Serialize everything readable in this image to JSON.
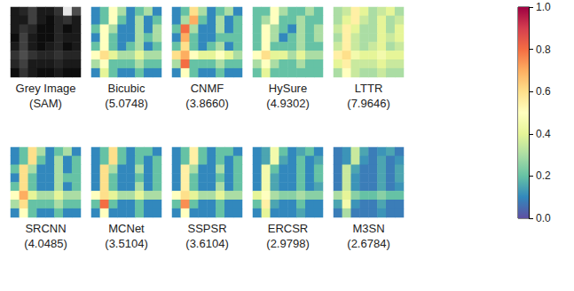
{
  "chart_data": {
    "type": "heatmap",
    "grey_image": {
      "caption": "Grey Image",
      "subcaption": "(SAM)",
      "range": [
        0,
        1
      ],
      "cells": [
        [
          0.1,
          0.15,
          0.25,
          0.1,
          0.1,
          0.2,
          0.9,
          0.3
        ],
        [
          0.1,
          0.1,
          0.25,
          0.1,
          0.05,
          0.15,
          0.2,
          0.1
        ],
        [
          0.1,
          0.2,
          0.15,
          0.05,
          0.05,
          0.15,
          0.05,
          0.1
        ],
        [
          0.05,
          0.25,
          0.1,
          0.05,
          0.05,
          0.15,
          0.1,
          0.1
        ],
        [
          0.1,
          0.25,
          0.1,
          0.05,
          0.1,
          0.15,
          0.05,
          0.1
        ],
        [
          0.2,
          0.3,
          0.2,
          0.15,
          0.15,
          0.2,
          0.15,
          0.15
        ],
        [
          0.15,
          0.25,
          0.1,
          0.1,
          0.1,
          0.15,
          0.1,
          0.1
        ],
        [
          0.05,
          0.2,
          0.1,
          0.05,
          0.05,
          0.1,
          0.05,
          0.05
        ]
      ]
    },
    "panels": [
      {
        "caption": "Bicubic",
        "subcaption": "(5.0748)",
        "cells": [
          [
            0.1,
            0.2,
            0.5,
            0.3,
            0.1,
            0.2,
            0.3,
            0.1
          ],
          [
            0.1,
            0.2,
            0.5,
            0.2,
            0.1,
            0.3,
            0.1,
            0.2
          ],
          [
            0.2,
            0.5,
            0.3,
            0.1,
            0.1,
            0.3,
            0.1,
            0.3
          ],
          [
            0.1,
            0.5,
            0.2,
            0.1,
            0.1,
            0.3,
            0.2,
            0.3
          ],
          [
            0.2,
            0.5,
            0.2,
            0.1,
            0.2,
            0.3,
            0.1,
            0.2
          ],
          [
            0.5,
            0.6,
            0.4,
            0.3,
            0.3,
            0.4,
            0.3,
            0.3
          ],
          [
            0.3,
            0.5,
            0.2,
            0.2,
            0.2,
            0.3,
            0.2,
            0.2
          ],
          [
            0.1,
            0.4,
            0.2,
            0.1,
            0.1,
            0.2,
            0.1,
            0.1
          ]
        ]
      },
      {
        "caption": "CNMF",
        "subcaption": "(3.8660)",
        "cells": [
          [
            0.1,
            0.2,
            0.6,
            0.3,
            0.1,
            0.2,
            0.3,
            0.1
          ],
          [
            0.1,
            0.3,
            0.7,
            0.2,
            0.1,
            0.3,
            0.1,
            0.2
          ],
          [
            0.2,
            0.8,
            0.3,
            0.1,
            0.1,
            0.3,
            0.1,
            0.2
          ],
          [
            0.1,
            0.7,
            0.2,
            0.1,
            0.1,
            0.2,
            0.2,
            0.2
          ],
          [
            0.2,
            0.6,
            0.2,
            0.1,
            0.2,
            0.3,
            0.1,
            0.2
          ],
          [
            0.6,
            0.7,
            0.5,
            0.4,
            0.4,
            0.5,
            0.4,
            0.3
          ],
          [
            0.3,
            0.8,
            0.2,
            0.2,
            0.2,
            0.3,
            0.2,
            0.2
          ],
          [
            0.1,
            0.5,
            0.2,
            0.1,
            0.1,
            0.2,
            0.1,
            0.1
          ]
        ]
      },
      {
        "caption": "HySure",
        "subcaption": "(4.9302)",
        "cells": [
          [
            0.2,
            0.2,
            0.5,
            0.3,
            0.2,
            0.2,
            0.3,
            0.2
          ],
          [
            0.2,
            0.3,
            0.5,
            0.2,
            0.2,
            0.3,
            0.2,
            0.2
          ],
          [
            0.2,
            0.5,
            0.3,
            0.2,
            0.1,
            0.3,
            0.2,
            0.3
          ],
          [
            0.2,
            0.5,
            0.3,
            0.1,
            0.2,
            0.3,
            0.2,
            0.3
          ],
          [
            0.2,
            0.5,
            0.2,
            0.2,
            0.2,
            0.3,
            0.2,
            0.2
          ],
          [
            0.5,
            0.6,
            0.4,
            0.4,
            0.3,
            0.4,
            0.3,
            0.3
          ],
          [
            0.3,
            0.5,
            0.3,
            0.2,
            0.2,
            0.3,
            0.2,
            0.2
          ],
          [
            0.2,
            0.4,
            0.2,
            0.2,
            0.2,
            0.2,
            0.2,
            0.2
          ]
        ]
      },
      {
        "caption": "LTTR",
        "subcaption": "(7.9646)",
        "cells": [
          [
            0.3,
            0.35,
            0.55,
            0.4,
            0.3,
            0.35,
            0.4,
            0.3
          ],
          [
            0.3,
            0.4,
            0.55,
            0.35,
            0.3,
            0.4,
            0.3,
            0.35
          ],
          [
            0.35,
            0.55,
            0.4,
            0.3,
            0.3,
            0.4,
            0.3,
            0.4
          ],
          [
            0.3,
            0.55,
            0.35,
            0.3,
            0.3,
            0.4,
            0.35,
            0.4
          ],
          [
            0.35,
            0.55,
            0.35,
            0.3,
            0.35,
            0.4,
            0.3,
            0.35
          ],
          [
            0.55,
            0.6,
            0.45,
            0.4,
            0.4,
            0.45,
            0.4,
            0.4
          ],
          [
            0.4,
            0.55,
            0.35,
            0.35,
            0.35,
            0.4,
            0.35,
            0.35
          ],
          [
            0.3,
            0.5,
            0.35,
            0.3,
            0.3,
            0.35,
            0.3,
            0.3
          ]
        ]
      },
      {
        "caption": "SRCNN",
        "subcaption": "(4.0485)",
        "cells": [
          [
            0.1,
            0.2,
            0.6,
            0.3,
            0.1,
            0.2,
            0.3,
            0.1
          ],
          [
            0.1,
            0.2,
            0.6,
            0.2,
            0.1,
            0.3,
            0.1,
            0.2
          ],
          [
            0.2,
            0.6,
            0.3,
            0.1,
            0.1,
            0.3,
            0.1,
            0.2
          ],
          [
            0.1,
            0.6,
            0.2,
            0.1,
            0.1,
            0.3,
            0.2,
            0.2
          ],
          [
            0.2,
            0.6,
            0.2,
            0.1,
            0.1,
            0.3,
            0.1,
            0.2
          ],
          [
            0.5,
            0.7,
            0.4,
            0.3,
            0.3,
            0.4,
            0.3,
            0.3
          ],
          [
            0.3,
            0.6,
            0.2,
            0.2,
            0.2,
            0.3,
            0.2,
            0.2
          ],
          [
            0.1,
            0.5,
            0.2,
            0.1,
            0.1,
            0.2,
            0.1,
            0.1
          ]
        ]
      },
      {
        "caption": "MCNet",
        "subcaption": "(3.5104)",
        "cells": [
          [
            0.1,
            0.2,
            0.6,
            0.2,
            0.1,
            0.2,
            0.2,
            0.1
          ],
          [
            0.1,
            0.2,
            0.6,
            0.2,
            0.1,
            0.2,
            0.1,
            0.2
          ],
          [
            0.1,
            0.6,
            0.3,
            0.1,
            0.1,
            0.3,
            0.1,
            0.2
          ],
          [
            0.1,
            0.6,
            0.2,
            0.1,
            0.1,
            0.2,
            0.1,
            0.2
          ],
          [
            0.1,
            0.6,
            0.2,
            0.1,
            0.1,
            0.3,
            0.1,
            0.2
          ],
          [
            0.5,
            0.6,
            0.4,
            0.3,
            0.3,
            0.4,
            0.3,
            0.3
          ],
          [
            0.2,
            0.8,
            0.2,
            0.1,
            0.1,
            0.2,
            0.1,
            0.1
          ],
          [
            0.1,
            0.5,
            0.1,
            0.1,
            0.1,
            0.2,
            0.1,
            0.1
          ]
        ]
      },
      {
        "caption": "SSPSR",
        "subcaption": "(3.6104)",
        "cells": [
          [
            0.1,
            0.2,
            0.55,
            0.2,
            0.1,
            0.2,
            0.2,
            0.1
          ],
          [
            0.1,
            0.2,
            0.55,
            0.2,
            0.1,
            0.2,
            0.1,
            0.2
          ],
          [
            0.1,
            0.55,
            0.3,
            0.1,
            0.1,
            0.3,
            0.1,
            0.2
          ],
          [
            0.1,
            0.55,
            0.2,
            0.1,
            0.1,
            0.2,
            0.1,
            0.2
          ],
          [
            0.1,
            0.55,
            0.2,
            0.1,
            0.1,
            0.3,
            0.1,
            0.2
          ],
          [
            0.5,
            0.6,
            0.4,
            0.3,
            0.3,
            0.4,
            0.3,
            0.3
          ],
          [
            0.2,
            0.75,
            0.2,
            0.1,
            0.1,
            0.2,
            0.1,
            0.1
          ],
          [
            0.1,
            0.5,
            0.1,
            0.1,
            0.1,
            0.2,
            0.1,
            0.1
          ]
        ]
      },
      {
        "caption": "ERCSR",
        "subcaption": "(2.9798)",
        "cells": [
          [
            0.1,
            0.15,
            0.45,
            0.2,
            0.1,
            0.15,
            0.2,
            0.1
          ],
          [
            0.1,
            0.15,
            0.45,
            0.15,
            0.1,
            0.2,
            0.1,
            0.15
          ],
          [
            0.1,
            0.45,
            0.2,
            0.1,
            0.1,
            0.2,
            0.1,
            0.2
          ],
          [
            0.1,
            0.45,
            0.15,
            0.1,
            0.1,
            0.2,
            0.1,
            0.2
          ],
          [
            0.1,
            0.45,
            0.15,
            0.1,
            0.1,
            0.2,
            0.1,
            0.15
          ],
          [
            0.4,
            0.5,
            0.3,
            0.25,
            0.25,
            0.3,
            0.25,
            0.25
          ],
          [
            0.2,
            0.55,
            0.15,
            0.1,
            0.1,
            0.2,
            0.1,
            0.1
          ],
          [
            0.1,
            0.4,
            0.1,
            0.1,
            0.1,
            0.15,
            0.1,
            0.1
          ]
        ]
      },
      {
        "caption": "M3SN",
        "subcaption": "(2.6784)",
        "cells": [
          [
            0.08,
            0.12,
            0.35,
            0.15,
            0.08,
            0.12,
            0.15,
            0.08
          ],
          [
            0.08,
            0.12,
            0.35,
            0.12,
            0.08,
            0.15,
            0.08,
            0.12
          ],
          [
            0.08,
            0.35,
            0.15,
            0.08,
            0.08,
            0.15,
            0.08,
            0.15
          ],
          [
            0.08,
            0.35,
            0.12,
            0.08,
            0.08,
            0.15,
            0.08,
            0.15
          ],
          [
            0.08,
            0.35,
            0.12,
            0.08,
            0.08,
            0.15,
            0.08,
            0.12
          ],
          [
            0.3,
            0.4,
            0.25,
            0.2,
            0.2,
            0.25,
            0.2,
            0.2
          ],
          [
            0.15,
            0.45,
            0.12,
            0.08,
            0.08,
            0.15,
            0.08,
            0.08
          ],
          [
            0.08,
            0.3,
            0.08,
            0.08,
            0.08,
            0.12,
            0.08,
            0.08
          ]
        ]
      }
    ],
    "colorbar": {
      "range": [
        0,
        1
      ],
      "ticks": [
        {
          "value": 0,
          "label": "0.0"
        },
        {
          "value": 0.2,
          "label": "0.2"
        },
        {
          "value": 0.4,
          "label": "0.4"
        },
        {
          "value": 0.6,
          "label": "0.6"
        },
        {
          "value": 0.8,
          "label": "0.8"
        },
        {
          "value": 1,
          "label": "1.0"
        }
      ]
    }
  }
}
